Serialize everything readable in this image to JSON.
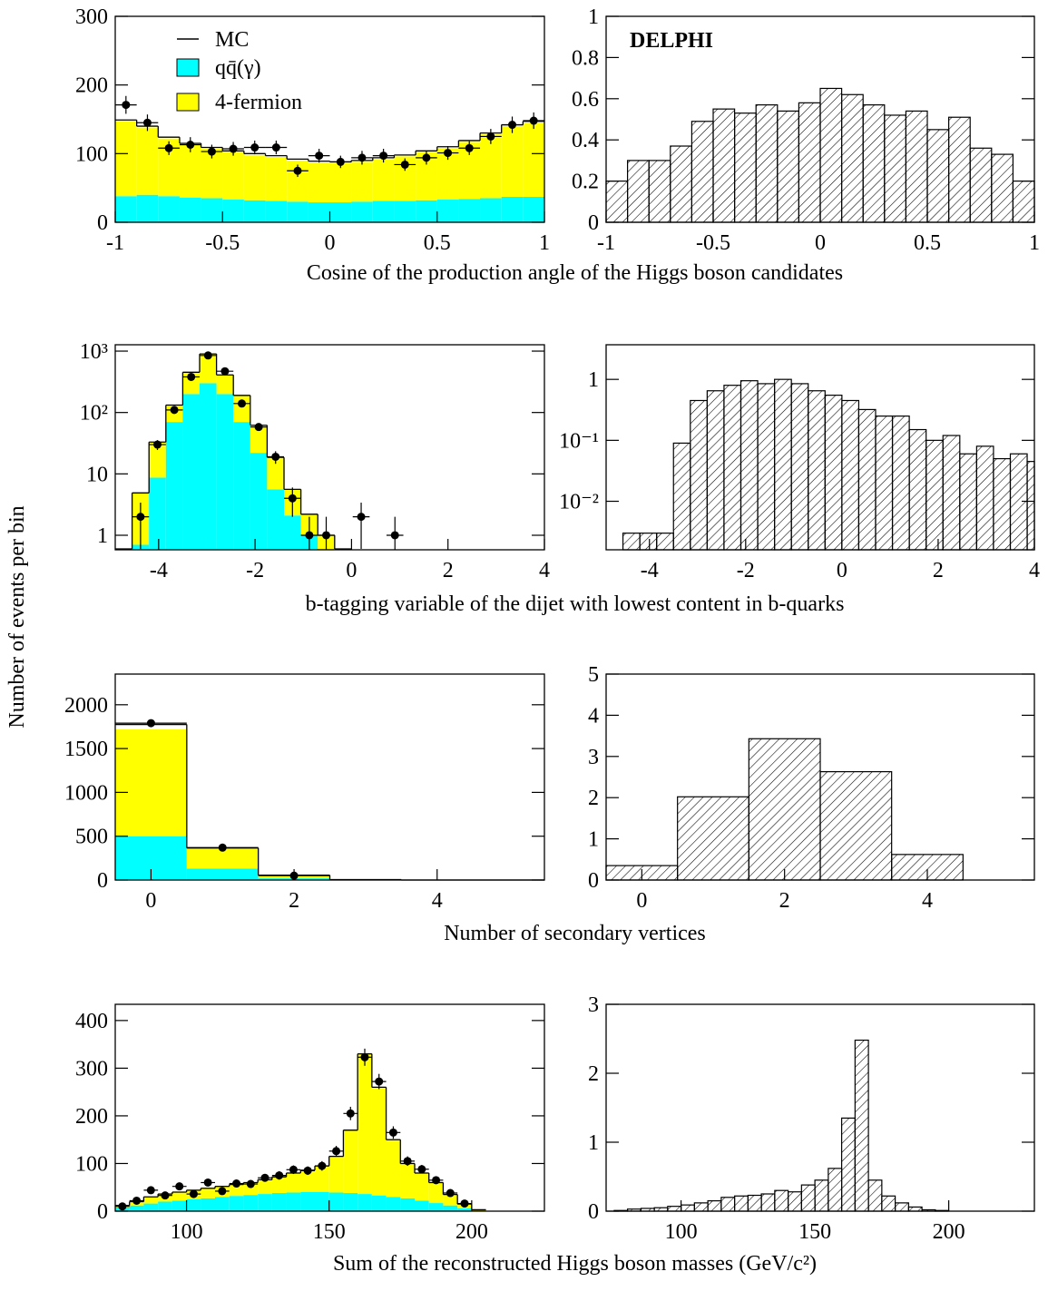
{
  "ylabel": "Number of events per bin",
  "chart_data": [
    {
      "type": "stacked-histogram",
      "xlabel": "Cosine of the production angle of the Higgs boson candidates",
      "bins": [
        -1,
        -0.9,
        -0.8,
        -0.7,
        -0.6,
        -0.5,
        -0.4,
        -0.3,
        -0.2,
        -0.1,
        0,
        0.1,
        0.2,
        0.3,
        0.4,
        0.5,
        0.6,
        0.7,
        0.8,
        0.9,
        1
      ],
      "series": [
        {
          "name": "qq̄(γ)",
          "color": "#00ffff",
          "values": [
            38,
            40,
            38,
            36,
            35,
            33,
            32,
            31,
            30,
            29,
            29,
            30,
            31,
            31,
            32,
            33,
            34,
            35,
            37,
            37
          ]
        },
        {
          "name": "4-fermion",
          "color": "#ffff00",
          "values": [
            109,
            98,
            84,
            77,
            72,
            69,
            66,
            64,
            60,
            58,
            57,
            58,
            61,
            65,
            70,
            75,
            83,
            93,
            103,
            108
          ]
        }
      ],
      "mc": {
        "name": "MC",
        "color": "#000000",
        "values": [
          149,
          140,
          124,
          115,
          109,
          104,
          100,
          97,
          92,
          89,
          88,
          90,
          94,
          98,
          104,
          110,
          119,
          130,
          142,
          147
        ]
      },
      "points": {
        "x": [
          -0.95,
          -0.85,
          -0.75,
          -0.65,
          -0.55,
          -0.45,
          -0.35,
          -0.25,
          -0.15,
          -0.05,
          0.05,
          0.15,
          0.25,
          0.35,
          0.45,
          0.55,
          0.65,
          0.75,
          0.85,
          0.95
        ],
        "values": [
          171,
          145,
          108,
          113,
          103,
          107,
          109,
          109,
          75,
          97,
          88,
          94,
          97,
          84,
          94,
          101,
          108,
          125,
          142,
          148
        ],
        "errors": [
          13,
          12,
          10,
          11,
          10,
          10,
          10,
          10,
          9,
          10,
          9,
          10,
          10,
          9,
          10,
          10,
          10,
          11,
          12,
          12
        ]
      },
      "xlim": [
        -1,
        1
      ],
      "xticks": [
        -1,
        -0.5,
        0,
        0.5,
        1
      ],
      "ylim": [
        0,
        300
      ],
      "yticks": [
        0,
        100,
        200,
        300
      ],
      "log": false
    },
    {
      "type": "hatched-histogram",
      "annotation": "DELPHI",
      "bins": [
        -1,
        -0.9,
        -0.8,
        -0.7,
        -0.6,
        -0.5,
        -0.4,
        -0.3,
        -0.2,
        -0.1,
        0,
        0.1,
        0.2,
        0.3,
        0.4,
        0.5,
        0.6,
        0.7,
        0.8,
        0.9,
        1
      ],
      "values": [
        0.2,
        0.3,
        0.3,
        0.37,
        0.49,
        0.55,
        0.53,
        0.57,
        0.54,
        0.58,
        0.65,
        0.62,
        0.57,
        0.52,
        0.54,
        0.45,
        0.51,
        0.36,
        0.33,
        0.2
      ],
      "xlim": [
        -1,
        1
      ],
      "xticks": [
        -1,
        -0.5,
        0,
        0.5,
        1
      ],
      "ylim": [
        0,
        1
      ],
      "yticks": [
        0,
        0.2,
        0.4,
        0.6,
        0.8,
        1
      ],
      "log": false
    },
    {
      "type": "stacked-histogram",
      "xlabel": "b-tagging variable of the dijet with lowest content in b-quarks",
      "bins": [
        -4.9,
        -4.55,
        -4.2,
        -3.85,
        -3.5,
        -3.15,
        -2.8,
        -2.45,
        -2.1,
        -1.75,
        -1.4,
        -1.05,
        -0.7,
        -0.35,
        0
      ],
      "series": [
        {
          "color": "#00ffff",
          "values": [
            0,
            0.7,
            8.7,
            70,
            200,
            300,
            200,
            70,
            22,
            5.6,
            2.1,
            1.0,
            0.6,
            0
          ]
        },
        {
          "color": "#ffff00",
          "values": [
            0.6,
            4.2,
            24.3,
            62,
            253,
            600,
            210,
            120,
            40,
            13,
            3.5,
            1.2,
            0.4,
            0.6
          ]
        }
      ],
      "mc": {
        "color": "#000000",
        "values": [
          0.6,
          4.9,
          33,
          132,
          453,
          900,
          410,
          190,
          62,
          18.6,
          5.6,
          2.2,
          1.0,
          0.6
        ]
      },
      "points": {
        "x": [
          -4.375,
          -4.025,
          -3.675,
          -3.325,
          -2.975,
          -2.625,
          -2.275,
          -1.925,
          -1.575,
          -1.225,
          -0.875,
          -0.525,
          0.2,
          0.9
        ],
        "values": [
          2,
          30,
          110,
          380,
          850,
          470,
          140,
          58,
          19,
          4,
          1,
          1,
          2,
          1
        ],
        "errors": [
          1.4,
          5.5,
          10.5,
          19.5,
          29,
          22,
          12,
          7.6,
          4.4,
          2,
          1,
          1,
          1.4,
          1
        ]
      },
      "xlim": [
        -4.9,
        4
      ],
      "xticks": [
        -4,
        -2,
        0,
        2,
        4
      ],
      "ylim": [
        0.58,
        1270
      ],
      "yticks": [
        1,
        10,
        {
          "value": 100,
          "label": "10²"
        },
        {
          "value": 1000,
          "label": "10³"
        }
      ],
      "log": true
    },
    {
      "type": "hatched-histogram",
      "bins": [
        -4.9,
        -4.55,
        -4.2,
        -3.85,
        -3.5,
        -3.15,
        -2.8,
        -2.45,
        -2.1,
        -1.75,
        -1.4,
        -1.05,
        -0.7,
        -0.35,
        0,
        0.35,
        0.7,
        1.05,
        1.4,
        1.75,
        2.1,
        2.45,
        2.8,
        3.15,
        3.5,
        3.85,
        4
      ],
      "values": [
        0,
        0.003,
        0.003,
        0.003,
        0.09,
        0.45,
        0.65,
        0.8,
        0.95,
        0.85,
        1.0,
        0.85,
        0.65,
        0.55,
        0.45,
        0.32,
        0.25,
        0.25,
        0.15,
        0.1,
        0.12,
        0.06,
        0.08,
        0.05,
        0.06,
        0.045
      ],
      "xlim": [
        -4.9,
        4
      ],
      "xticks": [
        -4,
        -2,
        0,
        2,
        4
      ],
      "ylim": [
        0.0016,
        3.7
      ],
      "yticks": [
        1,
        {
          "value": 0.1,
          "label": "10⁻¹"
        },
        {
          "value": 0.01,
          "label": "10⁻²"
        }
      ],
      "log": true
    },
    {
      "type": "stacked-histogram",
      "xlabel": "Number of secondary vertices",
      "bins": [
        -0.5,
        0.5,
        1.5,
        2.5,
        3.5,
        4.5,
        5.5
      ],
      "series": [
        {
          "color": "#00ffff",
          "values": [
            500,
            130,
            20,
            0,
            0,
            0
          ]
        },
        {
          "color": "#ffff00",
          "values": [
            1220,
            232,
            30,
            3,
            0,
            0
          ]
        }
      ],
      "mc": {
        "color": "#000000",
        "values": [
          1775,
          365,
          55,
          5,
          0,
          0
        ]
      },
      "points": {
        "x": [
          0,
          1,
          2
        ],
        "values": [
          1790,
          370,
          50
        ],
        "errors": [
          42,
          19,
          7
        ]
      },
      "xlim": [
        -0.5,
        5.5
      ],
      "xticks": [
        0,
        2,
        4
      ],
      "ylim": [
        0,
        2350
      ],
      "yticks": [
        0,
        500,
        1000,
        1500,
        2000
      ],
      "log": false
    },
    {
      "type": "hatched-histogram",
      "bins": [
        -0.5,
        0.5,
        1.5,
        2.5,
        3.5,
        4.5,
        5.5
      ],
      "values": [
        0.35,
        2.02,
        3.43,
        2.63,
        0.62,
        0
      ],
      "xlim": [
        -0.5,
        5.5
      ],
      "xticks": [
        0,
        2,
        4
      ],
      "ylim": [
        0,
        5
      ],
      "yticks": [
        0,
        1,
        2,
        3,
        4,
        5
      ],
      "log": false
    },
    {
      "type": "stacked-histogram",
      "xlabel": "Sum of the reconstructed Higgs boson masses (GeV/c²)",
      "bins": [
        75,
        80,
        85,
        90,
        95,
        100,
        105,
        110,
        115,
        120,
        125,
        130,
        135,
        140,
        145,
        150,
        155,
        160,
        165,
        170,
        175,
        180,
        185,
        190,
        195,
        200,
        205
      ],
      "series": [
        {
          "color": "#00ffff",
          "values": [
            8,
            12,
            16,
            20,
            22,
            25,
            27,
            30,
            32,
            34,
            36,
            38,
            39,
            40,
            40,
            39,
            38,
            36,
            33,
            30,
            27,
            22,
            17,
            12,
            6,
            1
          ]
        },
        {
          "color": "#ffff00",
          "values": [
            4,
            8,
            14,
            16,
            18,
            19,
            21,
            22,
            24,
            26,
            30,
            34,
            41,
            46,
            55,
            76,
            132,
            294,
            227,
            120,
            73,
            58,
            43,
            23,
            9,
            2
          ]
        }
      ],
      "mc": {
        "color": "#000000",
        "values": [
          12,
          20,
          30,
          36,
          40,
          44,
          48,
          52,
          56,
          60,
          66,
          72,
          80,
          86,
          95,
          115,
          170,
          330,
          260,
          150,
          100,
          80,
          60,
          35,
          15,
          3
        ]
      },
      "points": {
        "x": [
          77.5,
          82.5,
          87.5,
          92.5,
          97.5,
          102.5,
          107.5,
          112.5,
          117.5,
          122.5,
          127.5,
          132.5,
          137.5,
          142.5,
          147.5,
          152.5,
          157.5,
          162.5,
          167.5,
          172.5,
          177.5,
          182.5,
          187.5,
          192.5,
          197.5
        ],
        "values": [
          10,
          22,
          44,
          33,
          52,
          36,
          60,
          42,
          58,
          57,
          70,
          75,
          87,
          85,
          95,
          126,
          205,
          323,
          272,
          165,
          105,
          88,
          65,
          38,
          16
        ],
        "errors": [
          3,
          5,
          7,
          6,
          7,
          6,
          8,
          6,
          8,
          8,
          8,
          9,
          9,
          9,
          10,
          11,
          14,
          18,
          16,
          13,
          10,
          9,
          8,
          6,
          4
        ]
      },
      "xlim": [
        75,
        225.5
      ],
      "xticks": [
        100,
        150,
        200
      ],
      "ylim": [
        0,
        434
      ],
      "yticks": [
        0,
        100,
        200,
        300,
        400
      ],
      "log": false
    },
    {
      "type": "hatched-histogram",
      "bins": [
        75,
        80,
        85,
        90,
        95,
        100,
        105,
        110,
        115,
        120,
        125,
        130,
        135,
        140,
        145,
        150,
        155,
        160,
        165,
        170,
        175,
        180,
        185,
        190,
        195,
        200
      ],
      "values": [
        0.01,
        0.03,
        0.04,
        0.05,
        0.07,
        0.09,
        0.12,
        0.15,
        0.2,
        0.22,
        0.23,
        0.25,
        0.3,
        0.28,
        0.38,
        0.45,
        0.62,
        1.35,
        2.48,
        0.45,
        0.22,
        0.12,
        0.06,
        0.02,
        0.01
      ],
      "xlim": [
        72,
        232
      ],
      "xticks": [
        100,
        150,
        200
      ],
      "ylim": [
        0,
        3
      ],
      "yticks": [
        0,
        1,
        2,
        3
      ],
      "log": false
    }
  ]
}
